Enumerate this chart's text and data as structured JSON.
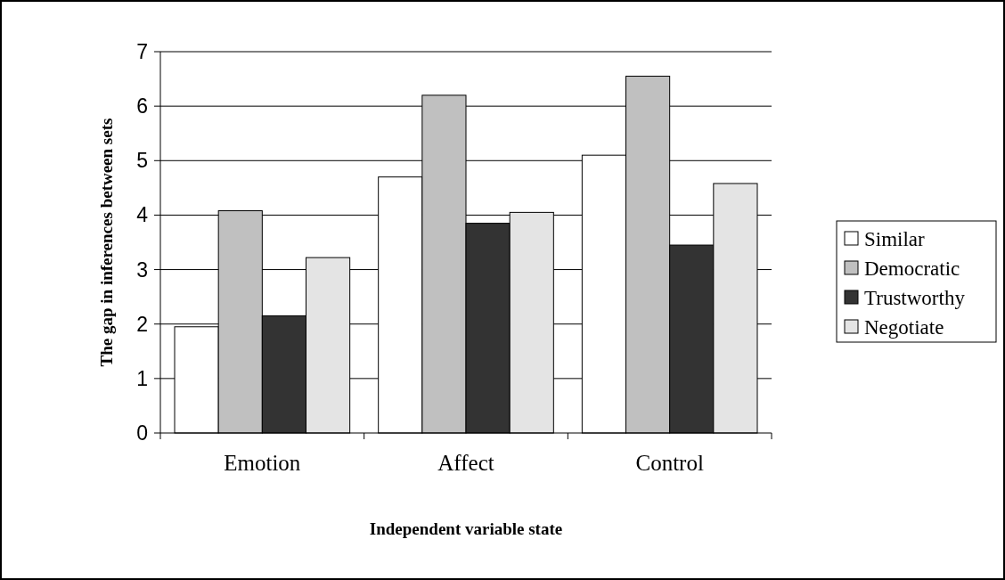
{
  "chart_data": {
    "type": "bar",
    "xlabel": "Independent variable state",
    "ylabel": "The gap in inferences between sets",
    "categories": [
      "Emotion",
      "Affect",
      "Control"
    ],
    "series": [
      {
        "name": "Similar",
        "color": "#ffffff",
        "values": [
          1.95,
          4.7,
          5.1
        ]
      },
      {
        "name": "Democratic",
        "color": "#c0c0c0",
        "values": [
          4.08,
          6.2,
          6.55
        ]
      },
      {
        "name": "Trustworthy",
        "color": "#333333",
        "values": [
          2.15,
          3.85,
          3.45
        ]
      },
      {
        "name": "Negotiate",
        "color": "#e4e4e4",
        "values": [
          3.22,
          4.05,
          4.58
        ]
      }
    ],
    "ylim": [
      0,
      7
    ],
    "yticks": [
      0,
      1,
      2,
      3,
      4,
      5,
      6,
      7
    ],
    "grid": "y",
    "legend": "right"
  }
}
